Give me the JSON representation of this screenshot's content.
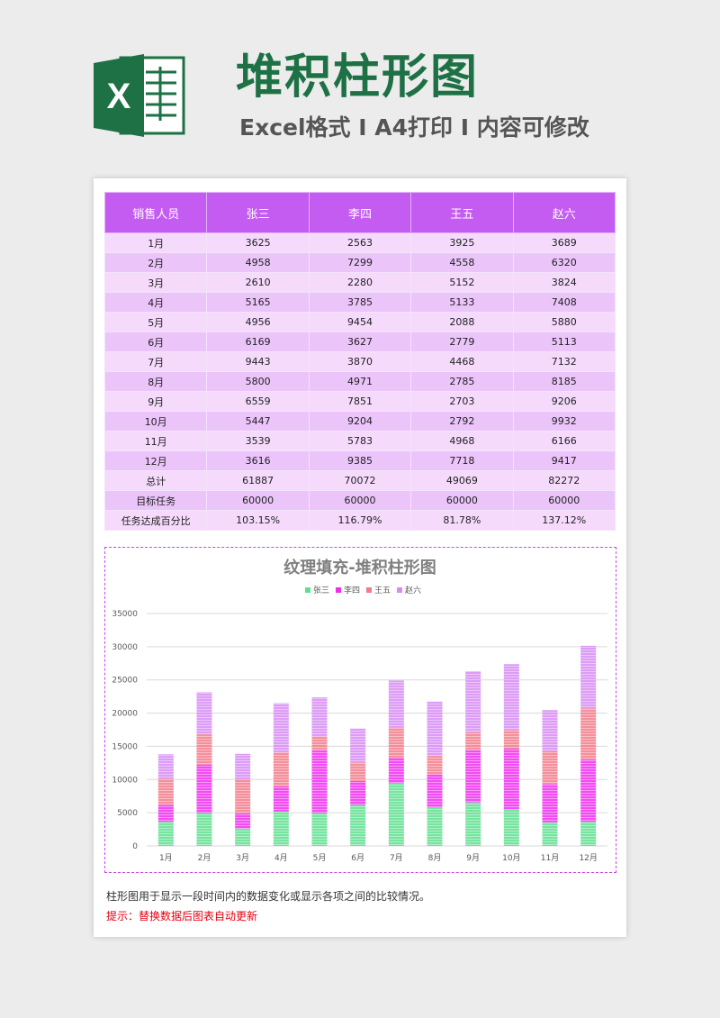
{
  "header": {
    "title": "堆积柱形图",
    "subtitle": "Excel格式 I A4打印 I 内容可修改",
    "logo_letter": "X"
  },
  "table": {
    "headers": [
      "销售人员",
      "张三",
      "李四",
      "王五",
      "赵六"
    ],
    "rows": [
      [
        "1月",
        "3625",
        "2563",
        "3925",
        "3689"
      ],
      [
        "2月",
        "4958",
        "7299",
        "4558",
        "6320"
      ],
      [
        "3月",
        "2610",
        "2280",
        "5152",
        "3824"
      ],
      [
        "4月",
        "5165",
        "3785",
        "5133",
        "7408"
      ],
      [
        "5月",
        "4956",
        "9454",
        "2088",
        "5880"
      ],
      [
        "6月",
        "6169",
        "3627",
        "2779",
        "5113"
      ],
      [
        "7月",
        "9443",
        "3870",
        "4468",
        "7132"
      ],
      [
        "8月",
        "5800",
        "4971",
        "2785",
        "8185"
      ],
      [
        "9月",
        "6559",
        "7851",
        "2703",
        "9206"
      ],
      [
        "10月",
        "5447",
        "9204",
        "2792",
        "9932"
      ],
      [
        "11月",
        "3539",
        "5783",
        "4968",
        "6166"
      ],
      [
        "12月",
        "3616",
        "9385",
        "7718",
        "9417"
      ],
      [
        "总计",
        "61887",
        "70072",
        "49069",
        "82272"
      ],
      [
        "目标任务",
        "60000",
        "60000",
        "60000",
        "60000"
      ],
      [
        "任务达成百分比",
        "103.15%",
        "116.79%",
        "81.78%",
        "137.12%"
      ]
    ]
  },
  "chart_data": {
    "type": "bar",
    "stacked": true,
    "title": "纹理填充-堆积柱形图",
    "categories": [
      "1月",
      "2月",
      "3月",
      "4月",
      "5月",
      "6月",
      "7月",
      "8月",
      "9月",
      "10月",
      "11月",
      "12月"
    ],
    "series": [
      {
        "name": "张三",
        "color": "#5fe08f",
        "values": [
          3625,
          4958,
          2610,
          5165,
          4956,
          6169,
          9443,
          5800,
          6559,
          5447,
          3539,
          3616
        ]
      },
      {
        "name": "李四",
        "color": "#f02ef0",
        "values": [
          2563,
          7299,
          2280,
          3785,
          9454,
          3627,
          3870,
          4971,
          7851,
          9204,
          5783,
          9385
        ]
      },
      {
        "name": "王五",
        "color": "#f27b8a",
        "values": [
          3925,
          4558,
          5152,
          5133,
          2088,
          2779,
          4468,
          2785,
          2703,
          2792,
          4968,
          7718
        ]
      },
      {
        "name": "赵六",
        "color": "#d78cf5",
        "values": [
          3689,
          6320,
          3824,
          7408,
          5880,
          5113,
          7132,
          8185,
          9206,
          9932,
          6166,
          9417
        ]
      }
    ],
    "yticks": [
      "0",
      "5000",
      "10000",
      "15000",
      "20000",
      "25000",
      "30000",
      "35000"
    ],
    "ylim": [
      0,
      35000
    ],
    "grid": true,
    "legend_position": "top"
  },
  "footer": {
    "note": "柱形图用于显示一段时间内的数据变化或显示各项之间的比较情况。",
    "tip": "提示：替换数据后图表自动更新"
  }
}
